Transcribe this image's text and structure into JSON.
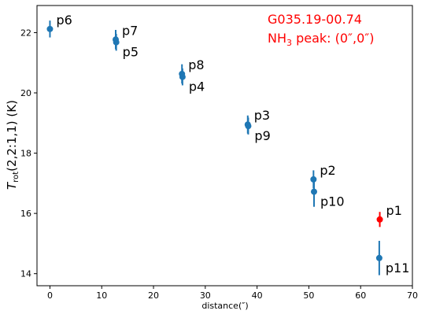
{
  "chart_data": {
    "type": "scatter",
    "xlabel": "distance(″)",
    "ylabel_main": "T",
    "ylabel_sub": "rot",
    "ylabel_rest": "(2,2:1,1) (K)",
    "xlim": [
      -2.5,
      70
    ],
    "ylim": [
      13.6,
      22.9
    ],
    "xticks": [
      0,
      10,
      20,
      30,
      40,
      50,
      60,
      70
    ],
    "yticks": [
      14,
      16,
      18,
      20,
      22
    ],
    "grid": false,
    "annotation": {
      "line1": "G035.19-00.74",
      "line2_prefix": "NH",
      "line2_sub": "3",
      "line2_suffix": " peak: (0″,0″)",
      "color": "#ff0000"
    },
    "points": [
      {
        "label": "p6",
        "x": 0.0,
        "y": 22.12,
        "yerr": 0.28,
        "color": "#1f77b4",
        "label_pos": "upper"
      },
      {
        "label": "p7",
        "x": 12.7,
        "y": 21.77,
        "yerr": 0.32,
        "color": "#1f77b4",
        "label_pos": "upper"
      },
      {
        "label": "p5",
        "x": 12.8,
        "y": 21.68,
        "yerr": 0.28,
        "color": "#1f77b4",
        "label_pos": "lower"
      },
      {
        "label": "p8",
        "x": 25.5,
        "y": 20.63,
        "yerr": 0.32,
        "color": "#1f77b4",
        "label_pos": "upper"
      },
      {
        "label": "p4",
        "x": 25.6,
        "y": 20.53,
        "yerr": 0.28,
        "color": "#1f77b4",
        "label_pos": "lower"
      },
      {
        "label": "p3",
        "x": 38.2,
        "y": 18.95,
        "yerr": 0.3,
        "color": "#1f77b4",
        "label_pos": "upper"
      },
      {
        "label": "p9",
        "x": 38.3,
        "y": 18.9,
        "yerr": 0.28,
        "color": "#1f77b4",
        "label_pos": "lower"
      },
      {
        "label": "p2",
        "x": 50.9,
        "y": 17.13,
        "yerr": 0.3,
        "color": "#1f77b4",
        "label_pos": "upper"
      },
      {
        "label": "p10",
        "x": 51.0,
        "y": 16.72,
        "yerr": 0.5,
        "color": "#1f77b4",
        "label_pos": "lower"
      },
      {
        "label": "p1",
        "x": 63.7,
        "y": 15.8,
        "yerr": 0.25,
        "color": "#ff0000",
        "label_pos": "upper"
      },
      {
        "label": "p11",
        "x": 63.6,
        "y": 14.52,
        "yerr": 0.57,
        "color": "#1f77b4",
        "label_pos": "lower"
      }
    ]
  }
}
